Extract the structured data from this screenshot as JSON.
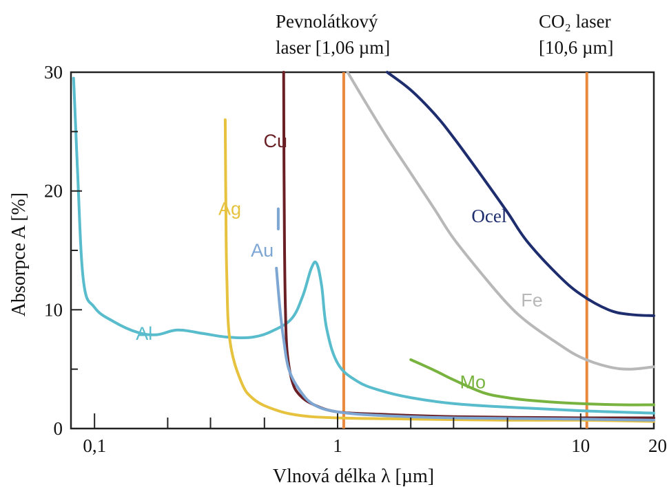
{
  "chart_data": {
    "type": "line",
    "title": "",
    "xlabel": "Vlnová délka λ [µm]",
    "ylabel": "Absorpce A [%]",
    "x_scale": "log",
    "xlim": [
      0.08,
      20
    ],
    "ylim": [
      0,
      30
    ],
    "x_ticks": [
      {
        "value": 0.1,
        "label": "0,1"
      },
      {
        "value": 1,
        "label": "1"
      },
      {
        "value": 10,
        "label": "10"
      },
      {
        "value": 20,
        "label": "20"
      }
    ],
    "y_ticks": [
      {
        "value": 0,
        "label": "0"
      },
      {
        "value": 10,
        "label": "10"
      },
      {
        "value": 20,
        "label": "20"
      },
      {
        "value": 30,
        "label": "30"
      }
    ],
    "grid": false,
    "legend": "inline labels",
    "reference_lines": [
      {
        "x": 1.06,
        "label_line1": "Pevnolátkový",
        "label_line2": "laser [1,06 µm]",
        "color": "#e8893e"
      },
      {
        "x": 10.6,
        "label_line1": "CO₂ laser",
        "label_line2": "[10,6 µm]",
        "color": "#e8893e"
      }
    ],
    "series": [
      {
        "name": "Al",
        "color": "#58bccd",
        "label_at": [
          0.16,
          8.0
        ],
        "x": [
          0.082,
          0.085,
          0.09,
          0.1,
          0.12,
          0.15,
          0.18,
          0.22,
          0.28,
          0.35,
          0.45,
          0.55,
          0.65,
          0.72,
          0.78,
          0.82,
          0.86,
          0.9,
          1.0,
          1.2,
          1.5,
          2,
          3,
          5,
          10,
          20
        ],
        "y": [
          29.5,
          22,
          12.5,
          10.2,
          9.0,
          8.1,
          7.9,
          8.3,
          8.0,
          7.7,
          7.7,
          8.3,
          9.3,
          11.2,
          13.5,
          13.9,
          12.0,
          8.5,
          5.5,
          4.0,
          3.2,
          2.6,
          2.1,
          1.8,
          1.5,
          1.3
        ]
      },
      {
        "name": "Ag",
        "color": "#e6c23e",
        "label_at": [
          0.36,
          18.5
        ],
        "x": [
          0.345,
          0.347,
          0.35,
          0.36,
          0.4,
          0.45,
          0.55,
          0.7,
          1.0,
          2,
          5,
          10,
          20
        ],
        "y": [
          26,
          19,
          13,
          7.5,
          4.0,
          2.5,
          1.6,
          1.1,
          0.9,
          0.8,
          0.7,
          0.7,
          0.6
        ]
      },
      {
        "name": "Cu",
        "color": "#6a1f25",
        "label_at": [
          0.555,
          24.2
        ],
        "x": [
          0.6,
          0.602,
          0.605,
          0.61,
          0.62,
          0.65,
          0.7,
          0.8,
          1.0,
          1.5,
          3,
          10,
          20
        ],
        "y": [
          30,
          22,
          15,
          10,
          6.5,
          4.0,
          2.8,
          2.0,
          1.4,
          1.2,
          1.0,
          0.9,
          0.9
        ]
      },
      {
        "name": "Au",
        "color": "#7ea6d3",
        "label_at": [
          0.49,
          15.0
        ],
        "x": [
          0.56,
          0.58,
          0.6,
          0.63,
          0.7,
          0.8,
          1.0,
          1.5,
          3,
          10,
          20
        ],
        "y": [
          13.5,
          10,
          7.5,
          5.0,
          3.2,
          2.0,
          1.4,
          1.1,
          0.9,
          0.8,
          0.7
        ]
      },
      {
        "name": "Fe",
        "color": "#b8b8b8",
        "label_at": [
          6.3,
          10.8
        ],
        "x": [
          1.1,
          1.3,
          1.6,
          2.0,
          2.5,
          3.0,
          4,
          5,
          6,
          8,
          10,
          13,
          16,
          20
        ],
        "y": [
          30,
          27.5,
          24.5,
          21.5,
          18.5,
          16.0,
          12.8,
          10.5,
          9.0,
          7.2,
          6.0,
          5.2,
          5.0,
          5.2
        ]
      },
      {
        "name": "Ocel",
        "color": "#1e2d6e",
        "label_at": [
          4.2,
          17.9
        ],
        "x": [
          1.6,
          2.0,
          2.5,
          3.0,
          4,
          5,
          6,
          8,
          10,
          13,
          16,
          20
        ],
        "y": [
          30,
          28.5,
          26.5,
          24.5,
          21.0,
          18.2,
          15.8,
          13.0,
          11.3,
          10.0,
          9.6,
          9.5
        ]
      },
      {
        "name": "Mo",
        "color": "#79b33f",
        "label_at": [
          3.6,
          3.9
        ],
        "x": [
          2.0,
          2.5,
          3.0,
          4,
          5,
          6,
          8,
          10,
          15,
          20
        ],
        "y": [
          5.8,
          4.9,
          4.1,
          3.0,
          2.6,
          2.4,
          2.2,
          2.1,
          2.0,
          2.0
        ]
      }
    ]
  }
}
